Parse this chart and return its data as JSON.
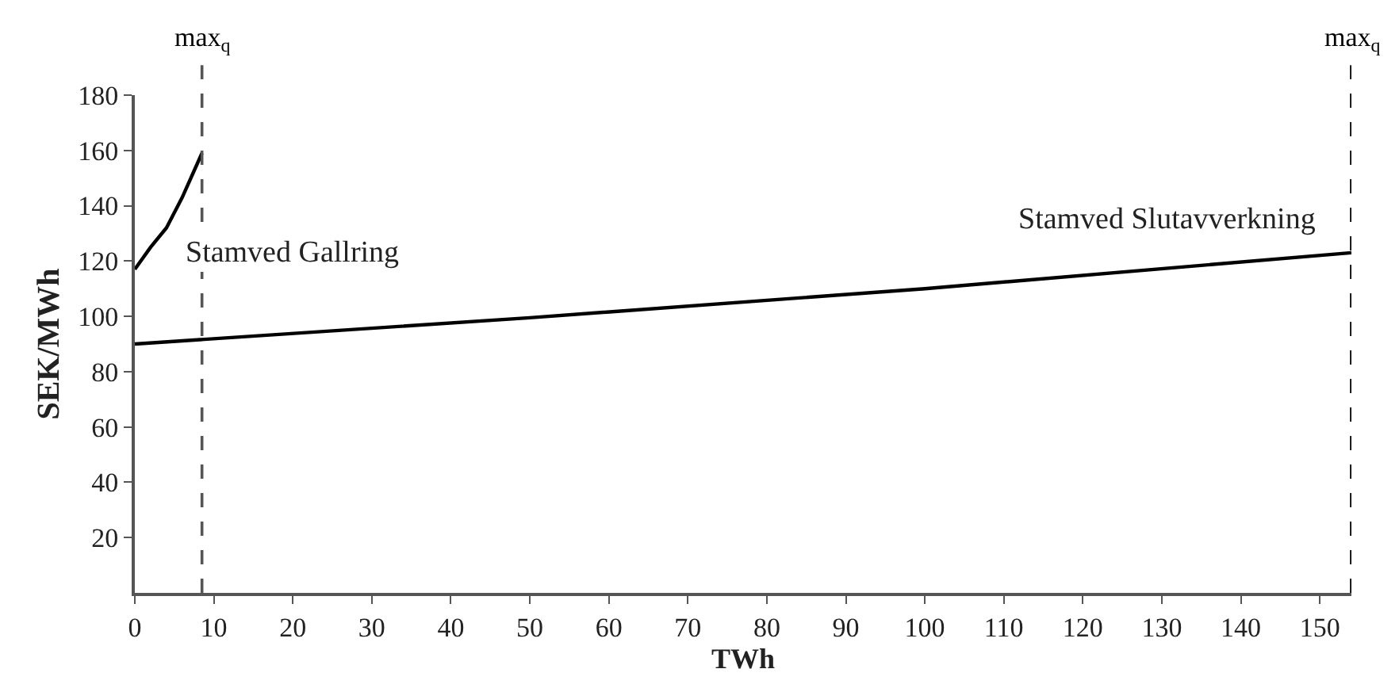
{
  "chart_data": {
    "type": "line",
    "xlabel": "TWh",
    "ylabel": "SEK/MWh",
    "series": [
      {
        "name": "Stamved Gallring",
        "color": "#000000",
        "x": [
          0,
          2,
          4,
          6,
          8.5
        ],
        "values": [
          117,
          125,
          132,
          143,
          159
        ]
      },
      {
        "name": "Stamved Slutavverkning",
        "color": "#000000",
        "x": [
          0,
          50,
          100,
          154
        ],
        "values": [
          90,
          99.5,
          110,
          123
        ]
      }
    ],
    "ref_lines": [
      {
        "axis": "x",
        "value": 8.5,
        "label": "max$_{q}$",
        "line_style": "dashed",
        "color": "#555555"
      },
      {
        "axis": "x",
        "value": 154,
        "label": "max$_{q}$",
        "line_style": "dashed",
        "color": "#000000"
      }
    ],
    "xlim": [
      0,
      154
    ],
    "xticks": [
      0,
      10,
      20,
      30,
      40,
      50,
      60,
      70,
      80,
      90,
      100,
      110,
      120,
      130,
      140,
      150
    ],
    "ylim": [
      0,
      180
    ],
    "yticks": [
      20,
      40,
      60,
      80,
      100,
      120,
      140,
      160,
      180
    ],
    "legend": false,
    "marker": "none",
    "line_style": "solid"
  }
}
